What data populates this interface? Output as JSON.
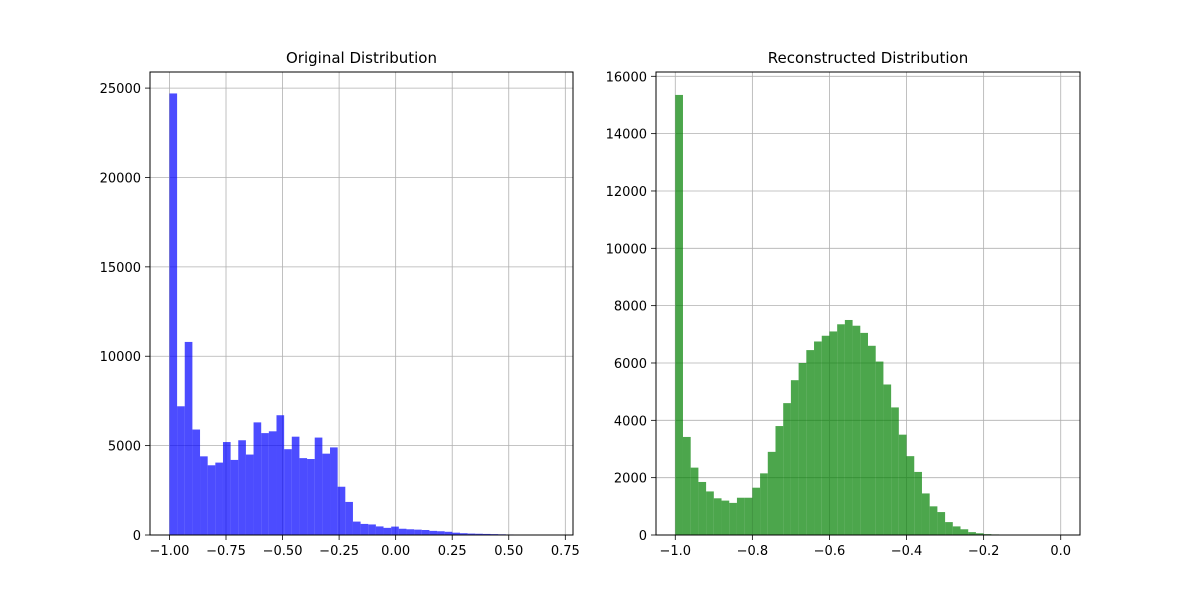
{
  "chart_data": [
    {
      "type": "bar",
      "title": "Original Distribution",
      "xlabel": "",
      "ylabel": "",
      "xlim": [
        -1.086,
        0.784
      ],
      "ylim": [
        0,
        25900
      ],
      "xticks": [
        -1.0,
        -0.75,
        -0.5,
        -0.25,
        0.0,
        0.25,
        0.5,
        0.75
      ],
      "xtick_labels": [
        "−1.00",
        "−0.75",
        "−0.50",
        "−0.25",
        "0.00",
        "0.25",
        "0.50",
        "0.75"
      ],
      "yticks": [
        0,
        5000,
        10000,
        15000,
        20000,
        25000
      ],
      "ytick_labels": [
        "0",
        "5000",
        "10000",
        "15000",
        "20000",
        "25000"
      ],
      "grid": true,
      "color": "#0000ff",
      "alpha": 0.7,
      "bin_start": -1.0,
      "bin_width": 0.0338,
      "values": [
        24700,
        7200,
        10800,
        5900,
        4400,
        3900,
        4050,
        5200,
        4200,
        5300,
        4500,
        6300,
        5700,
        5800,
        6700,
        4800,
        5500,
        4300,
        4250,
        5450,
        4550,
        4900,
        2700,
        1850,
        750,
        620,
        590,
        480,
        400,
        470,
        350,
        320,
        300,
        280,
        230,
        210,
        180,
        130,
        100,
        80,
        70,
        60,
        50,
        40,
        30,
        20,
        15,
        10,
        5,
        5
      ]
    },
    {
      "type": "bar",
      "title": "Reconstructed Distribution",
      "xlabel": "",
      "ylabel": "",
      "xlim": [
        -1.05,
        0.05
      ],
      "ylim": [
        0,
        16150
      ],
      "xticks": [
        -1.0,
        -0.8,
        -0.6,
        -0.4,
        -0.2,
        0.0
      ],
      "xtick_labels": [
        "−1.0",
        "−0.8",
        "−0.6",
        "−0.4",
        "−0.2",
        "0.0"
      ],
      "yticks": [
        0,
        2000,
        4000,
        6000,
        8000,
        10000,
        12000,
        14000,
        16000
      ],
      "ytick_labels": [
        "0",
        "2000",
        "4000",
        "6000",
        "8000",
        "10000",
        "12000",
        "14000",
        "16000"
      ],
      "grid": true,
      "color": "#008000",
      "alpha": 0.7,
      "bin_start": -1.0,
      "bin_width": 0.02,
      "values": [
        15350,
        3420,
        2350,
        1850,
        1520,
        1280,
        1200,
        1120,
        1300,
        1300,
        1650,
        2150,
        2900,
        3800,
        4600,
        5400,
        6000,
        6450,
        6750,
        6950,
        7100,
        7350,
        7500,
        7300,
        7050,
        6600,
        6050,
        5250,
        4450,
        3500,
        2750,
        2200,
        1450,
        1000,
        800,
        450,
        300,
        200,
        100,
        60,
        30,
        20,
        10,
        10,
        5,
        5,
        5,
        5,
        5,
        5
      ]
    }
  ]
}
